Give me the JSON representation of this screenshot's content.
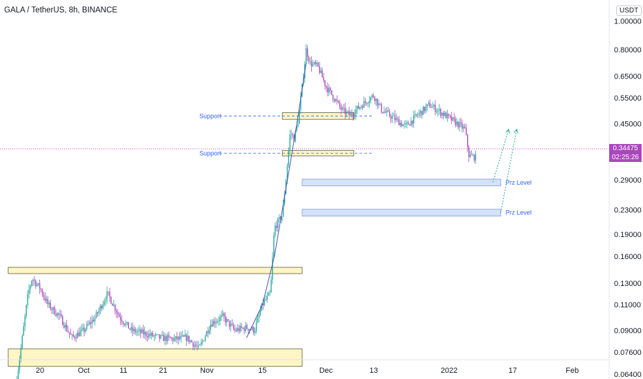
{
  "header": {
    "title": "GALA / TetherUS, 8h, BINANCE"
  },
  "price_axis": {
    "unit": "USDT",
    "last_price": "0.34475",
    "countdown": "02:25:26"
  },
  "chart_data": {
    "type": "candlestick",
    "title": "GALA / TetherUS, 8h, BINANCE",
    "y_scale": "log",
    "ylim": [
      0.058,
      1.25
    ],
    "y_ticks": [
      {
        "label": "1.00000",
        "value": 1.0
      },
      {
        "label": "0.80000",
        "value": 0.8
      },
      {
        "label": "0.65000",
        "value": 0.65
      },
      {
        "label": "0.55000",
        "value": 0.55
      },
      {
        "label": "0.45000",
        "value": 0.45
      },
      {
        "label": "0.29000",
        "value": 0.29
      },
      {
        "label": "0.23000",
        "value": 0.23
      },
      {
        "label": "0.19000",
        "value": 0.19
      },
      {
        "label": "0.16000",
        "value": 0.16
      },
      {
        "label": "0.13000",
        "value": 0.13
      },
      {
        "label": "0.11000",
        "value": 0.11
      },
      {
        "label": "0.09000",
        "value": 0.09
      },
      {
        "label": "0.07600",
        "value": 0.076
      },
      {
        "label": "0.06400",
        "value": 0.064
      }
    ],
    "x_ticks": [
      {
        "label": "20",
        "date": "2021-09-20"
      },
      {
        "label": "Oct",
        "date": "2021-10-01"
      },
      {
        "label": "11",
        "date": "2021-10-11"
      },
      {
        "label": "21",
        "date": "2021-10-21"
      },
      {
        "label": "Nov",
        "date": "2021-11-01"
      },
      {
        "label": "15",
        "date": "2021-11-15"
      },
      {
        "label": "Dec",
        "date": "2021-12-01"
      },
      {
        "label": "13",
        "date": "2021-12-13"
      },
      {
        "label": "2022",
        "date": "2022-01-01"
      },
      {
        "label": "17",
        "date": "2022-01-17"
      },
      {
        "label": "Feb",
        "date": "2022-02-01"
      }
    ],
    "price_path": [
      [
        "2021-09-14",
        0.06
      ],
      [
        "2021-09-15",
        0.075
      ],
      [
        "2021-09-17",
        0.12
      ],
      [
        "2021-09-18",
        0.135
      ],
      [
        "2021-09-20",
        0.125
      ],
      [
        "2021-09-22",
        0.11
      ],
      [
        "2021-09-25",
        0.1
      ],
      [
        "2021-09-28",
        0.085
      ],
      [
        "2021-10-01",
        0.09
      ],
      [
        "2021-10-04",
        0.1
      ],
      [
        "2021-10-07",
        0.12
      ],
      [
        "2021-10-10",
        0.1
      ],
      [
        "2021-10-13",
        0.09
      ],
      [
        "2021-10-16",
        0.088
      ],
      [
        "2021-10-20",
        0.085
      ],
      [
        "2021-10-24",
        0.084
      ],
      [
        "2021-10-27",
        0.085
      ],
      [
        "2021-10-30",
        0.078
      ],
      [
        "2021-11-02",
        0.095
      ],
      [
        "2021-11-05",
        0.1
      ],
      [
        "2021-11-08",
        0.09
      ],
      [
        "2021-11-11",
        0.092
      ],
      [
        "2021-11-13",
        0.09
      ],
      [
        "2021-11-15",
        0.11
      ],
      [
        "2021-11-17",
        0.12
      ],
      [
        "2021-11-18",
        0.2
      ],
      [
        "2021-11-20",
        0.22
      ],
      [
        "2021-11-21",
        0.3
      ],
      [
        "2021-11-22",
        0.42
      ],
      [
        "2021-11-23",
        0.4
      ],
      [
        "2021-11-24",
        0.46
      ],
      [
        "2021-11-25",
        0.6
      ],
      [
        "2021-11-26",
        0.8
      ],
      [
        "2021-11-27",
        0.72
      ],
      [
        "2021-11-29",
        0.7
      ],
      [
        "2021-12-01",
        0.6
      ],
      [
        "2021-12-03",
        0.55
      ],
      [
        "2021-12-05",
        0.5
      ],
      [
        "2021-12-07",
        0.48
      ],
      [
        "2021-12-10",
        0.52
      ],
      [
        "2021-12-13",
        0.56
      ],
      [
        "2021-12-15",
        0.5
      ],
      [
        "2021-12-18",
        0.47
      ],
      [
        "2021-12-21",
        0.44
      ],
      [
        "2021-12-24",
        0.48
      ],
      [
        "2021-12-27",
        0.52
      ],
      [
        "2021-12-29",
        0.5
      ],
      [
        "2022-01-01",
        0.47
      ],
      [
        "2022-01-03",
        0.45
      ],
      [
        "2022-01-05",
        0.43
      ],
      [
        "2022-01-06",
        0.35
      ],
      [
        "2022-01-08",
        0.345
      ]
    ],
    "annotations": {
      "support_levels": [
        {
          "label": "Support",
          "low": 0.465,
          "high": 0.49,
          "start": "2021-11-20",
          "end": "2021-12-08"
        },
        {
          "label": "Support",
          "low": 0.35,
          "high": 0.365,
          "start": "2021-11-20",
          "end": "2021-12-08"
        }
      ],
      "prz_levels": [
        {
          "label": "Prz Level",
          "low": 0.277,
          "high": 0.292,
          "start": "2021-11-25",
          "end": "2022-01-14"
        },
        {
          "label": "Prz Level",
          "low": 0.219,
          "high": 0.231,
          "start": "2021-11-25",
          "end": "2022-01-14"
        }
      ],
      "range_zones": [
        {
          "low": 0.14,
          "high": 0.147,
          "start": "2021-09-12",
          "end": "2021-11-25"
        },
        {
          "low": 0.068,
          "high": 0.078,
          "start": "2021-09-12",
          "end": "2021-11-25"
        }
      ],
      "projection_arrows": [
        {
          "from": [
            "2022-01-12",
            0.285
          ],
          "to": [
            "2022-01-16",
            0.43
          ]
        },
        {
          "from": [
            "2022-01-14",
            0.225
          ],
          "to": [
            "2022-01-18",
            0.43
          ]
        }
      ],
      "parabolic_curve": [
        [
          "2021-11-11",
          0.085
        ],
        [
          "2021-11-15",
          0.11
        ],
        [
          "2021-11-18",
          0.16
        ],
        [
          "2021-11-20",
          0.23
        ],
        [
          "2021-11-22",
          0.33
        ],
        [
          "2021-11-24",
          0.48
        ],
        [
          "2021-11-26",
          0.72
        ]
      ]
    },
    "colors": {
      "up": "#26a69a",
      "down": "#ab47bc",
      "support_zone_fill": "#fff6c6",
      "support_zone_border": "#5b5b3a",
      "prz_fill": "#d6e1fa",
      "prz_border": "#7e9ce8",
      "label": "#2962ff",
      "arrow": "#26a69a",
      "curve": "#3f51b5"
    }
  }
}
